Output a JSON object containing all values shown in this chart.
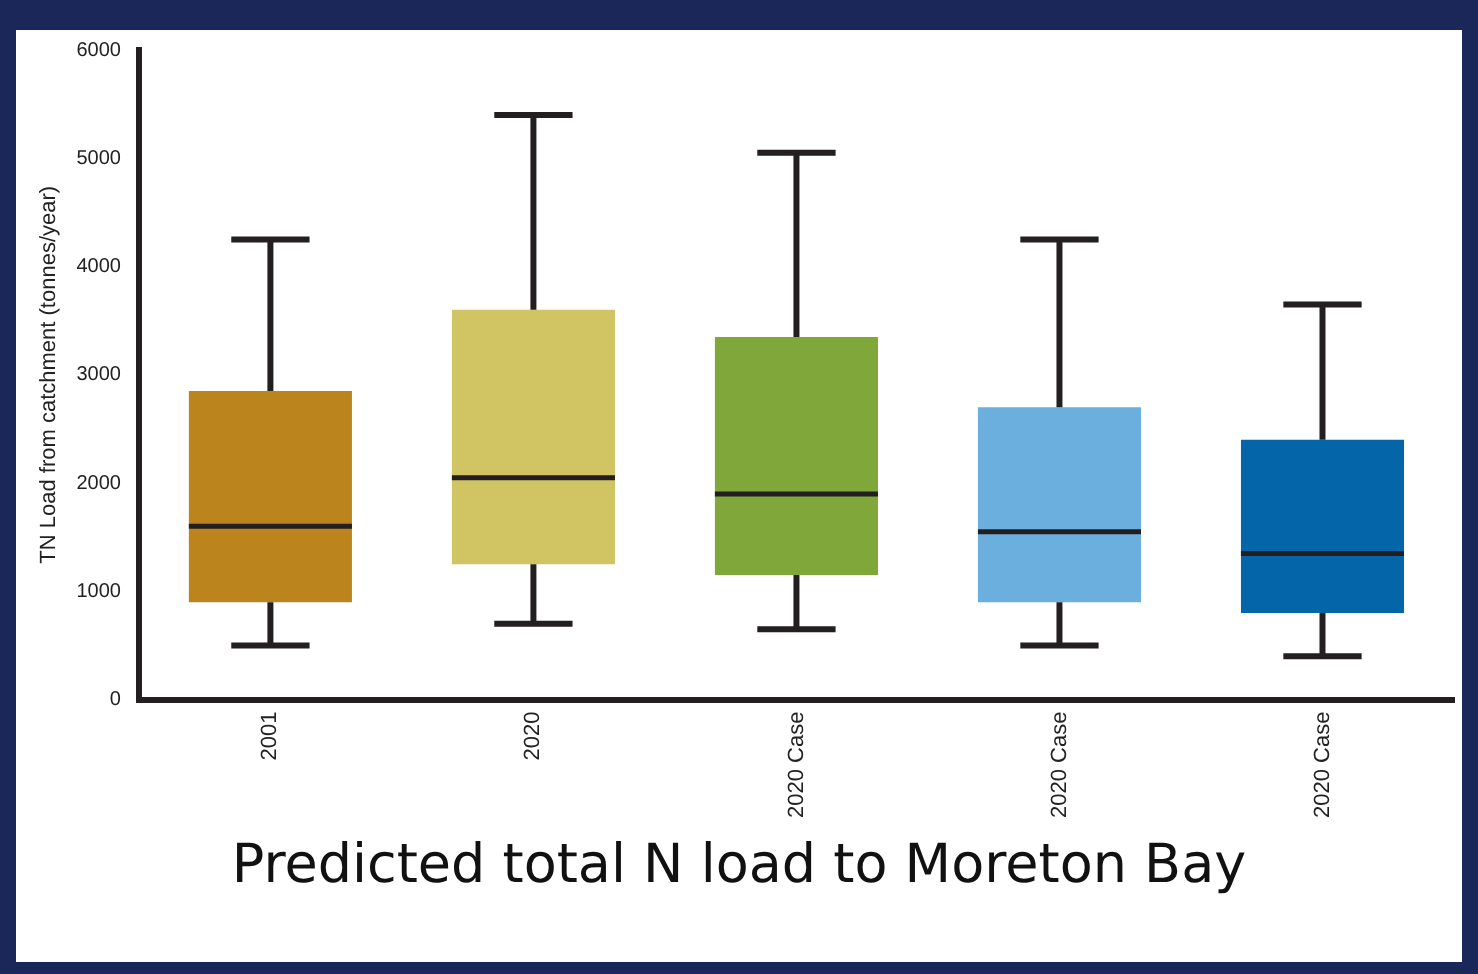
{
  "chart_data": {
    "type": "box",
    "ylabel": "TN Load from catchment (tonnes/year)",
    "categories": [
      "2001",
      "2020",
      "2020 Case",
      "2020 Case",
      "2020 Case"
    ],
    "boxes": [
      {
        "low": 500,
        "q1": 900,
        "median": 1600,
        "q3": 2850,
        "high": 4250
      },
      {
        "low": 700,
        "q1": 1250,
        "median": 2050,
        "q3": 3600,
        "high": 5400
      },
      {
        "low": 650,
        "q1": 1150,
        "median": 1900,
        "q3": 3350,
        "high": 5050
      },
      {
        "low": 500,
        "q1": 900,
        "median": 1550,
        "q3": 2700,
        "high": 4250
      },
      {
        "low": 400,
        "q1": 800,
        "median": 1350,
        "q3": 2400,
        "high": 3650
      }
    ],
    "colors": [
      "#bb841c",
      "#d1c462",
      "#80a73a",
      "#6aafdd",
      "#0465a8"
    ],
    "ylim": [
      0,
      6000
    ],
    "yticks": [
      0,
      1000,
      2000,
      3000,
      4000,
      5000,
      6000
    ],
    "grid": false,
    "legend": false,
    "annotations": [
      "Predicted total N load to Moreton Bay"
    ]
  }
}
